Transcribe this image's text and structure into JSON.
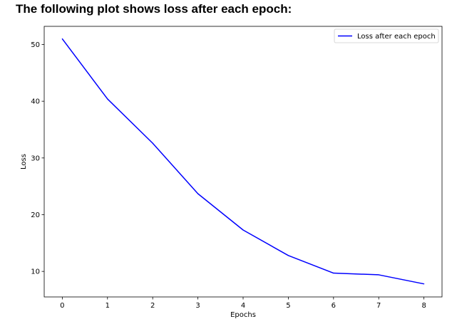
{
  "heading": "The following plot shows loss after each epoch:",
  "chart_data": {
    "type": "line",
    "title": "",
    "xlabel": "Epochs",
    "ylabel": "Loss",
    "x": [
      0,
      1,
      2,
      3,
      4,
      5,
      6,
      7,
      8
    ],
    "xticks": [
      0,
      1,
      2,
      3,
      4,
      5,
      6,
      7,
      8
    ],
    "yticks": [
      10,
      20,
      30,
      40,
      50
    ],
    "xlim": [
      -0.4,
      8.4
    ],
    "ylim": [
      5.5,
      53.2
    ],
    "grid": false,
    "legend_position": "top-right",
    "series": [
      {
        "name": "Loss after each epoch",
        "color": "#0000ff",
        "values": [
          51.0,
          40.4,
          32.6,
          23.7,
          17.3,
          12.8,
          9.7,
          9.4,
          7.8
        ]
      }
    ]
  }
}
